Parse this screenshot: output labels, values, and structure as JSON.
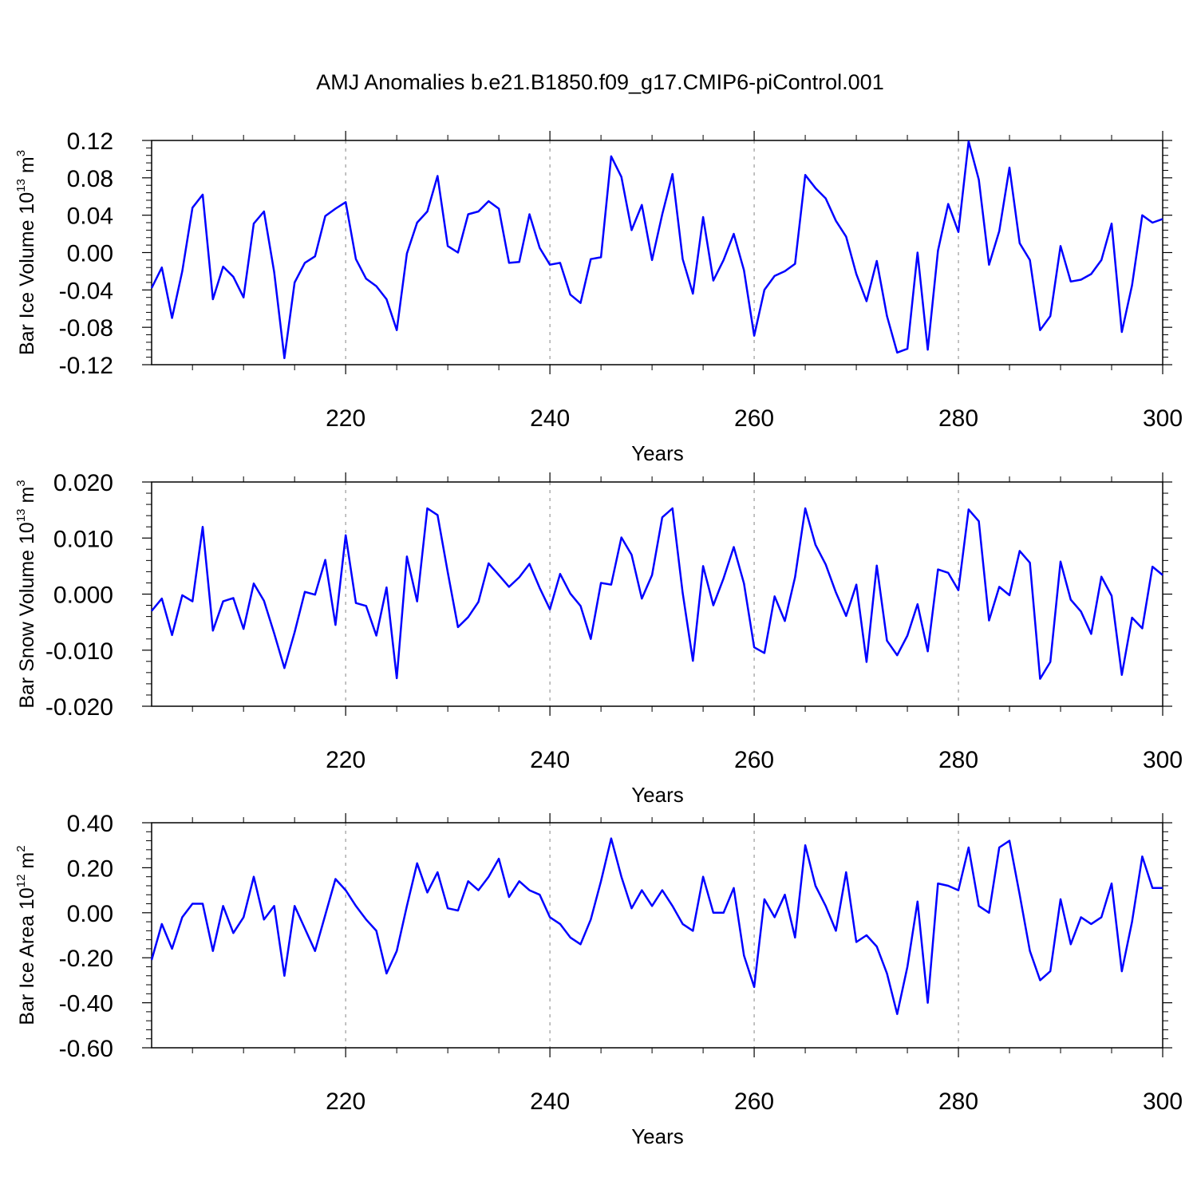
{
  "title": "AMJ Anomalies b.e21.B1850.f09_g17.CMIP6-piControl.001",
  "series_color": "#0000ff",
  "chart_data": [
    {
      "type": "line",
      "ylabel": {
        "text": "Bar Ice Volume 10",
        "exp": "13",
        "unit": " m",
        "unit_exp": "3"
      },
      "xlabel": "Years",
      "xlim": [
        201,
        300
      ],
      "ylim": [
        -0.12,
        0.12
      ],
      "yticks": [
        "-0.12",
        "-0.08",
        "-0.04",
        "0.00",
        "0.04",
        "0.08",
        "0.12"
      ],
      "xticks": [
        "220",
        "240",
        "260",
        "280",
        "300"
      ],
      "x_start": 201,
      "values": [
        -0.038,
        -0.016,
        -0.07,
        -0.02,
        0.048,
        0.062,
        -0.05,
        -0.015,
        -0.026,
        -0.048,
        0.031,
        0.044,
        -0.021,
        -0.113,
        -0.032,
        -0.011,
        -0.004,
        0.039,
        0.047,
        0.054,
        -0.007,
        -0.028,
        -0.036,
        -0.05,
        -0.083,
        -0.001,
        0.032,
        0.044,
        0.082,
        0.007,
        0.0,
        0.041,
        0.044,
        0.055,
        0.047,
        -0.011,
        -0.01,
        0.041,
        0.005,
        -0.013,
        -0.011,
        -0.045,
        -0.054,
        -0.007,
        -0.005,
        0.103,
        0.081,
        0.024,
        0.051,
        -0.008,
        0.041,
        0.084,
        -0.007,
        -0.044,
        0.038,
        -0.03,
        -0.008,
        0.02,
        -0.019,
        -0.089,
        -0.04,
        -0.025,
        -0.02,
        -0.012,
        0.083,
        0.069,
        0.058,
        0.034,
        0.017,
        -0.023,
        -0.052,
        -0.009,
        -0.068,
        -0.107,
        -0.103,
        0.0,
        -0.104,
        0.002,
        0.052,
        0.022,
        0.119,
        0.078,
        -0.013,
        0.023,
        0.091,
        0.01,
        -0.008,
        -0.083,
        -0.068,
        0.007,
        -0.031,
        -0.029,
        -0.023,
        -0.008,
        0.031,
        -0.085,
        -0.035,
        0.04,
        0.032,
        0.036
      ]
    },
    {
      "type": "line",
      "ylabel": {
        "text": "Bar Snow Volume 10",
        "exp": "13",
        "unit": " m",
        "unit_exp": "3"
      },
      "xlabel": "Years",
      "xlim": [
        201,
        300
      ],
      "ylim": [
        -0.02,
        0.02
      ],
      "yticks": [
        "-0.020",
        "-0.010",
        "0.000",
        "0.010",
        "0.020"
      ],
      "xticks": [
        "220",
        "240",
        "260",
        "280",
        "300"
      ],
      "x_start": 201,
      "values": [
        -0.003,
        -0.0008,
        -0.0073,
        -0.0002,
        -0.0013,
        0.012,
        -0.0065,
        -0.0013,
        -0.0007,
        -0.0062,
        0.0019,
        -0.0012,
        -0.007,
        -0.0132,
        -0.0068,
        0.0004,
        -0.0001,
        0.0061,
        -0.0055,
        0.0105,
        -0.0016,
        -0.0021,
        -0.0074,
        0.0012,
        -0.015,
        0.0067,
        -0.0013,
        0.0153,
        0.0141,
        0.0039,
        -0.0059,
        -0.0041,
        -0.0014,
        0.0055,
        0.0034,
        0.0013,
        0.003,
        0.0054,
        0.0011,
        -0.0027,
        0.0036,
        0.0001,
        -0.0021,
        -0.008,
        0.002,
        0.0017,
        0.0101,
        0.007,
        -0.0008,
        0.0034,
        0.0137,
        0.0153,
        0.0002,
        -0.0119,
        0.005,
        -0.002,
        0.0028,
        0.0084,
        0.0019,
        -0.0095,
        -0.0105,
        -0.0004,
        -0.0048,
        0.003,
        0.0153,
        0.0088,
        0.0053,
        0.0003,
        -0.0039,
        0.0017,
        -0.0121,
        0.0051,
        -0.0083,
        -0.0109,
        -0.0074,
        -0.0018,
        -0.0102,
        0.0044,
        0.0038,
        0.0007,
        0.0151,
        0.013,
        -0.0047,
        0.0013,
        -0.0002,
        0.0077,
        0.0056,
        -0.0151,
        -0.0121,
        0.0058,
        -0.001,
        -0.0031,
        -0.0071,
        0.0031,
        -0.0003,
        -0.0144,
        -0.0042,
        -0.0061,
        0.0049,
        0.0034
      ]
    },
    {
      "type": "line",
      "ylabel": {
        "text": "Bar Ice Area 10",
        "exp": "12",
        "unit": " m",
        "unit_exp": "2"
      },
      "xlabel": "Years",
      "xlim": [
        201,
        300
      ],
      "ylim": [
        -0.6,
        0.4
      ],
      "yticks": [
        "-0.60",
        "-0.40",
        "-0.20",
        "0.00",
        "0.20",
        "0.40"
      ],
      "xticks": [
        "220",
        "240",
        "260",
        "280",
        "300"
      ],
      "x_start": 201,
      "values": [
        -0.21,
        -0.05,
        -0.16,
        -0.02,
        0.04,
        0.04,
        -0.17,
        0.03,
        -0.09,
        -0.02,
        0.16,
        -0.03,
        0.03,
        -0.28,
        0.03,
        -0.07,
        -0.17,
        -0.01,
        0.15,
        0.1,
        0.03,
        -0.03,
        -0.08,
        -0.27,
        -0.17,
        0.03,
        0.22,
        0.09,
        0.18,
        0.02,
        0.01,
        0.14,
        0.1,
        0.16,
        0.24,
        0.07,
        0.14,
        0.1,
        0.08,
        -0.02,
        -0.05,
        -0.11,
        -0.14,
        -0.03,
        0.14,
        0.33,
        0.16,
        0.02,
        0.1,
        0.03,
        0.1,
        0.03,
        -0.05,
        -0.08,
        0.16,
        0.0,
        0.0,
        0.11,
        -0.19,
        -0.33,
        0.06,
        -0.02,
        0.08,
        -0.11,
        0.3,
        0.12,
        0.03,
        -0.08,
        0.18,
        -0.13,
        -0.1,
        -0.15,
        -0.27,
        -0.45,
        -0.24,
        0.05,
        -0.4,
        0.13,
        0.12,
        0.1,
        0.29,
        0.03,
        0.0,
        0.29,
        0.32,
        0.08,
        -0.17,
        -0.3,
        -0.26,
        0.06,
        -0.14,
        -0.02,
        -0.05,
        -0.02,
        0.13,
        -0.26,
        -0.04,
        0.25,
        0.11,
        0.11
      ]
    }
  ]
}
